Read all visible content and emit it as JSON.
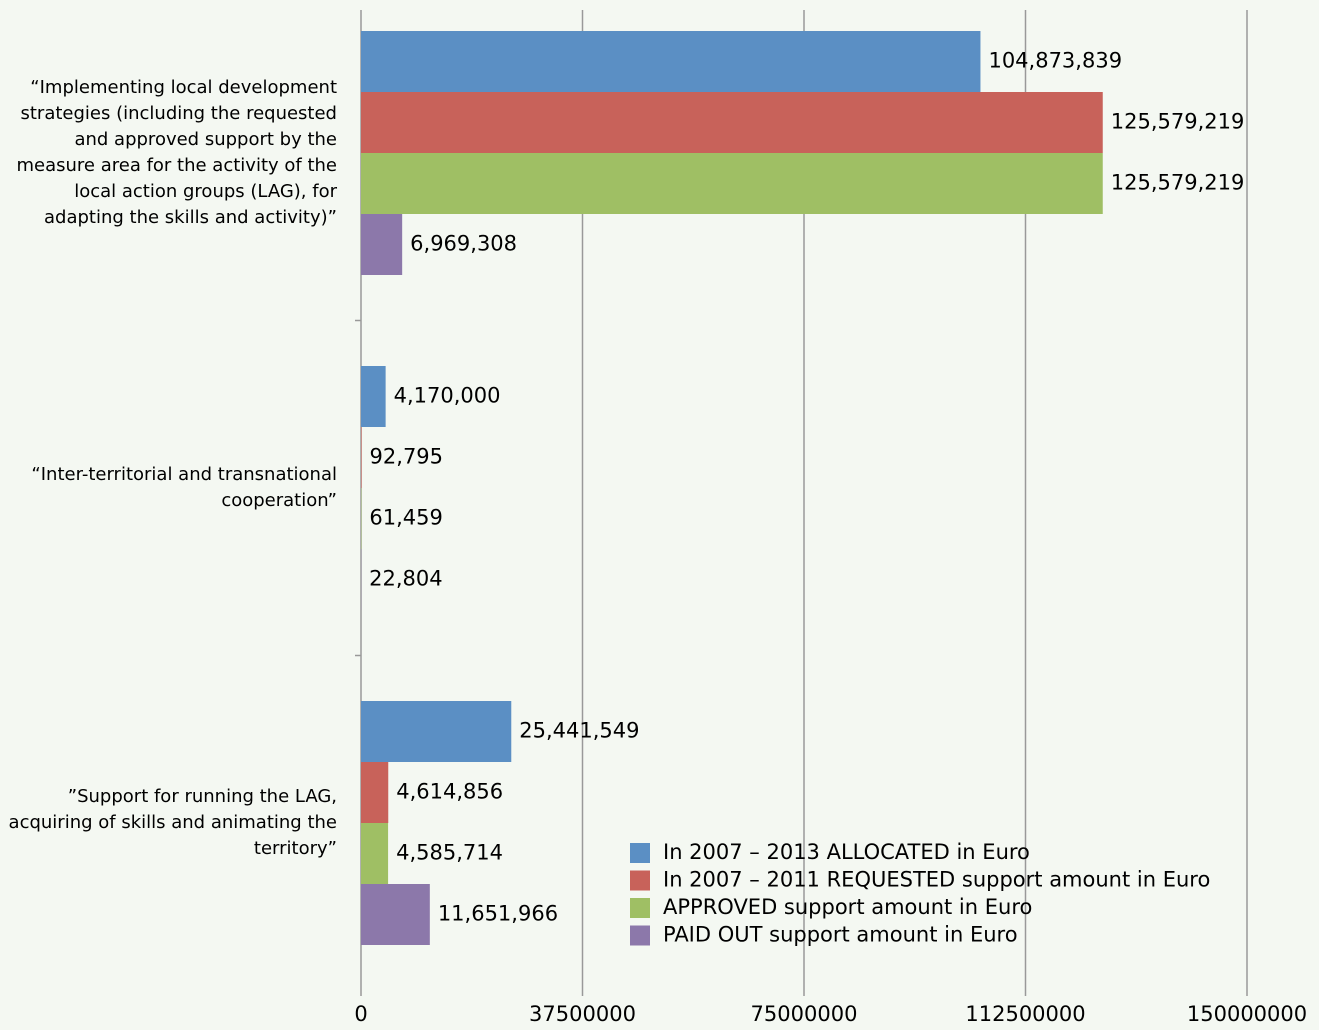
{
  "chart_data": {
    "type": "bar",
    "orientation": "horizontal",
    "categories": [
      "“Implementing local development strategies (including the requested and approved support by the measure area for the activity of the local action groups (LAG), for adapting the skills and activity)”",
      "“Inter-territorial and transnational cooperation”",
      "”Support for running the LAG, acquiring of skills and animating the territory”"
    ],
    "series": [
      {
        "name": "In 2007 – 2013 ALLOCATED in Euro",
        "color": "#5b8fc4",
        "values": [
          104873839,
          4170000,
          25441549
        ],
        "value_labels": [
          "104,873,839",
          "4,170,000",
          "25,441,549"
        ]
      },
      {
        "name": "In 2007 – 2011 REQUESTED support amount in Euro",
        "color": "#c8625a",
        "values": [
          125579219,
          92795,
          4614856
        ],
        "value_labels": [
          "125,579,219",
          "92,795",
          "4,614,856"
        ]
      },
      {
        "name": "APPROVED support amount in Euro",
        "color": "#9fbf64",
        "values": [
          125579219,
          61459,
          4585714
        ],
        "value_labels": [
          "125,579,219",
          "61,459",
          "4,585,714"
        ]
      },
      {
        "name": "PAID OUT support amount in Euro",
        "color": "#8c78aa",
        "values": [
          6969308,
          22804,
          11651966
        ],
        "value_labels": [
          "6,969,308",
          "22,804",
          "11,651,966"
        ]
      }
    ],
    "xlim": [
      0,
      150000000
    ],
    "xticks": [
      0,
      37500000,
      75000000,
      112500000,
      150000000
    ],
    "grid": true,
    "legend": "lower right"
  }
}
